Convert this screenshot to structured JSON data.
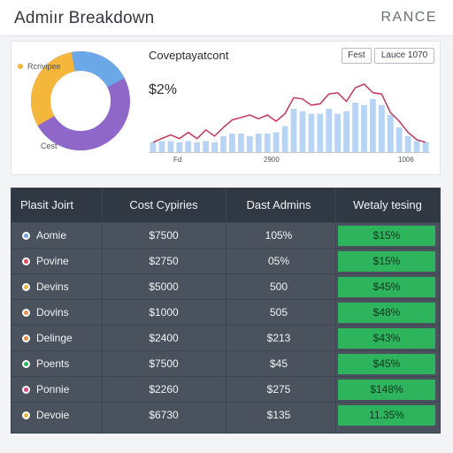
{
  "header": {
    "title": "Admiır Breakdown",
    "brand": "RANCE"
  },
  "donut": {
    "legend_label": "Rcrivipee",
    "caption": "Cest",
    "colors": [
      "#6aa8e8",
      "#f4b63b",
      "#8f67c9"
    ]
  },
  "chart_panel": {
    "title": "Coveptayatcont",
    "percent": "$2%",
    "buttons": {
      "fest": "Fest",
      "lauce": "Lauce 1070"
    },
    "x_tick_labels": [
      "Fd",
      "2900",
      "1006"
    ]
  },
  "chart_data": {
    "type": "bar",
    "title": "Coveptayatcont",
    "bars": [
      8,
      9,
      9,
      8,
      9,
      8,
      9,
      8,
      13,
      15,
      15,
      13,
      15,
      15,
      16,
      21,
      35,
      33,
      31,
      31,
      35,
      31,
      33,
      40,
      38,
      43,
      38,
      30,
      20,
      13,
      9,
      8
    ],
    "line": [
      8,
      11,
      14,
      11,
      16,
      11,
      18,
      13,
      20,
      26,
      28,
      30,
      27,
      30,
      25,
      31,
      44,
      43,
      38,
      39,
      47,
      48,
      41,
      52,
      55,
      48,
      47,
      32,
      25,
      16,
      10,
      8
    ],
    "ylim": [
      0,
      60
    ],
    "colors": {
      "bars": "#b8d4f5",
      "line": "#c3375e"
    }
  },
  "table": {
    "headers": [
      "Plasit Joirt",
      "Cost Cypiries",
      "Dast Admins",
      "Wetaly tesing"
    ],
    "rows": [
      {
        "name": "Aomie",
        "cost": "$7500",
        "admins": "105%",
        "rate": "$15%",
        "dot": "#6aa8e8"
      },
      {
        "name": "Povine",
        "cost": "$2750",
        "admins": "05%",
        "rate": "$15%",
        "dot": "#e5484d"
      },
      {
        "name": "Devins",
        "cost": "$5000",
        "admins": "500",
        "rate": "$45%",
        "dot": "#f4b63b"
      },
      {
        "name": "Dovins",
        "cost": "$1000",
        "admins": "505",
        "rate": "$48%",
        "dot": "#f08a3c"
      },
      {
        "name": "Delinge",
        "cost": "$2400",
        "admins": "$213",
        "rate": "$43%",
        "dot": "#f08a3c"
      },
      {
        "name": "Poents",
        "cost": "$7500",
        "admins": "$45",
        "rate": "$45%",
        "dot": "#2db45c"
      },
      {
        "name": "Ponnie",
        "cost": "$2260",
        "admins": "$275",
        "rate": "$148%",
        "dot": "#e0457b"
      },
      {
        "name": "Devoie",
        "cost": "$6730",
        "admins": "$135",
        "rate": "11.35%",
        "dot": "#f4b63b"
      }
    ]
  }
}
